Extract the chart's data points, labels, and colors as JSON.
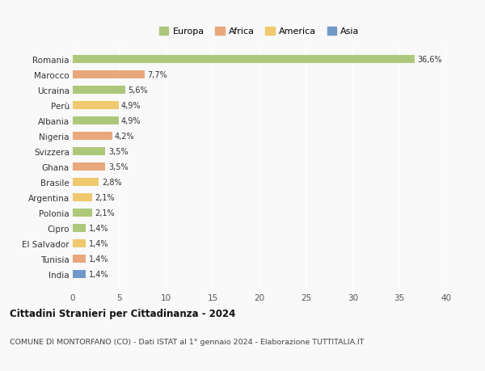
{
  "countries": [
    "Romania",
    "Marocco",
    "Ucraina",
    "Perù",
    "Albania",
    "Nigeria",
    "Svizzera",
    "Ghana",
    "Brasile",
    "Argentina",
    "Polonia",
    "Cipro",
    "El Salvador",
    "Tunisia",
    "India"
  ],
  "values": [
    36.6,
    7.7,
    5.6,
    4.9,
    4.9,
    4.2,
    3.5,
    3.5,
    2.8,
    2.1,
    2.1,
    1.4,
    1.4,
    1.4,
    1.4
  ],
  "labels": [
    "36,6%",
    "7,7%",
    "5,6%",
    "4,9%",
    "4,9%",
    "4,2%",
    "3,5%",
    "3,5%",
    "2,8%",
    "2,1%",
    "2,1%",
    "1,4%",
    "1,4%",
    "1,4%",
    "1,4%"
  ],
  "colors": [
    "#adc87a",
    "#e8a87c",
    "#adc87a",
    "#f0c96e",
    "#adc87a",
    "#e8a87c",
    "#adc87a",
    "#e8a87c",
    "#f0c96e",
    "#f0c96e",
    "#adc87a",
    "#adc87a",
    "#f0c96e",
    "#e8a87c",
    "#7098c8"
  ],
  "legend_labels": [
    "Europa",
    "Africa",
    "America",
    "Asia"
  ],
  "legend_colors": [
    "#adc87a",
    "#e8a87c",
    "#f0c96e",
    "#7098c8"
  ],
  "title": "Cittadini Stranieri per Cittadinanza - 2024",
  "subtitle": "COMUNE DI MONTORFANO (CO) - Dati ISTAT al 1° gennaio 2024 - Elaborazione TUTTITALIA.IT",
  "xlim": [
    0,
    40
  ],
  "xticks": [
    0,
    5,
    10,
    15,
    20,
    25,
    30,
    35,
    40
  ],
  "bg_color": "#f9f9f9",
  "grid_color": "#ffffff",
  "bar_height": 0.55
}
